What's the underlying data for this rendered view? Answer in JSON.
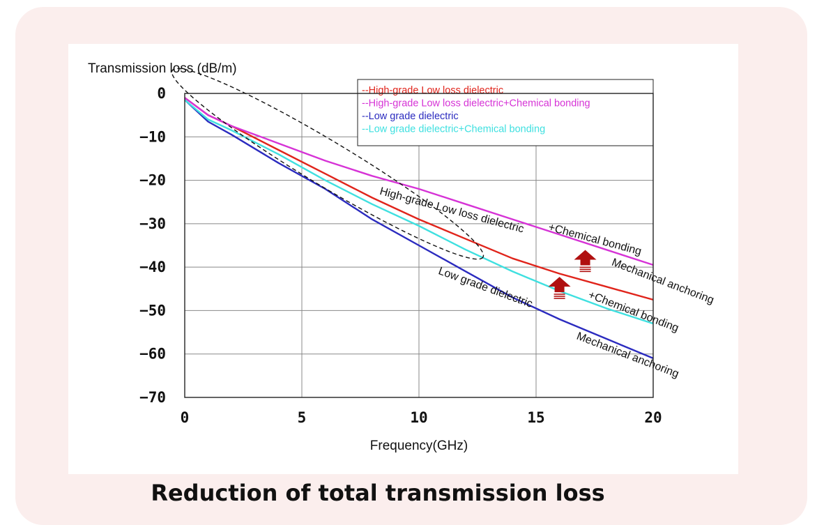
{
  "caption": "Reduction of total transmission loss",
  "colors": {
    "card_bg": "#fbeeed",
    "red": "#e0241b",
    "magenta": "#d633d6",
    "blue": "#2b2bbf",
    "cyan": "#3fe0e0",
    "arrow": "#b01010"
  },
  "chart_data": {
    "type": "line",
    "title": "",
    "xlabel": "Frequency(GHz)",
    "ylabel": "Transmission loss (dB/m)",
    "xlim": [
      0,
      20
    ],
    "ylim": [
      -70,
      0
    ],
    "xticks": [
      "0",
      "5",
      "10",
      "15",
      "20"
    ],
    "yticks": [
      "0",
      "−10",
      "−20",
      "−30",
      "−40",
      "−50",
      "−60",
      "−70"
    ],
    "grid": true,
    "legend_position": "top-right",
    "series": [
      {
        "name": "--High-grade Low loss dielectric",
        "color": "#e0241b",
        "x": [
          0,
          1,
          2,
          4,
          6,
          8,
          10,
          12,
          14,
          16,
          18,
          20
        ],
        "y": [
          -1,
          -5,
          -7.5,
          -13,
          -18.5,
          -24,
          -29,
          -33.5,
          -38,
          -41.5,
          -44.5,
          -47.5
        ]
      },
      {
        "name": "--High-grade Low loss dielectric+Chemical bonding",
        "color": "#d633d6",
        "x": [
          0,
          1,
          2,
          4,
          6,
          8,
          10,
          12,
          14,
          16,
          18,
          20
        ],
        "y": [
          -1,
          -5,
          -7.5,
          -11.5,
          -15.5,
          -19,
          -22,
          -25.5,
          -29,
          -32.5,
          -36,
          -39.5
        ]
      },
      {
        "name": "--Low grade dielectric",
        "color": "#2b2bbf",
        "x": [
          0,
          1,
          2,
          4,
          6,
          8,
          10,
          12,
          14,
          16,
          18,
          20
        ],
        "y": [
          -1.5,
          -6.5,
          -9.5,
          -16,
          -22,
          -29,
          -35,
          -41,
          -47,
          -52,
          -56.5,
          -61
        ]
      },
      {
        "name": "--Low grade dielectric+Chemical bonding",
        "color": "#3fe0e0",
        "x": [
          0,
          1,
          2,
          4,
          6,
          8,
          10,
          12,
          14,
          16,
          18,
          20
        ],
        "y": [
          -1.5,
          -6,
          -8.5,
          -14,
          -20,
          -25.5,
          -30.5,
          -36,
          -41,
          -45.5,
          -49.5,
          -53
        ]
      }
    ],
    "annotations": [
      {
        "text": "High-grade Low loss dielectric",
        "x": 8.3,
        "y": -23.2,
        "angle": 15
      },
      {
        "text": "+Chemical bonding",
        "x": 15.5,
        "y": -31.5,
        "angle": 15
      },
      {
        "text": "Mechanical anchoring",
        "x": 18.2,
        "y": -39.5,
        "angle": 21
      },
      {
        "text": "Low grade dielectric",
        "x": 10.8,
        "y": -41.5,
        "angle": 20
      },
      {
        "text": "+Chemical bonding",
        "x": 17.2,
        "y": -47,
        "angle": 21
      },
      {
        "text": "Mechanical anchoring",
        "x": 16.7,
        "y": -56.5,
        "angle": 21
      }
    ]
  }
}
